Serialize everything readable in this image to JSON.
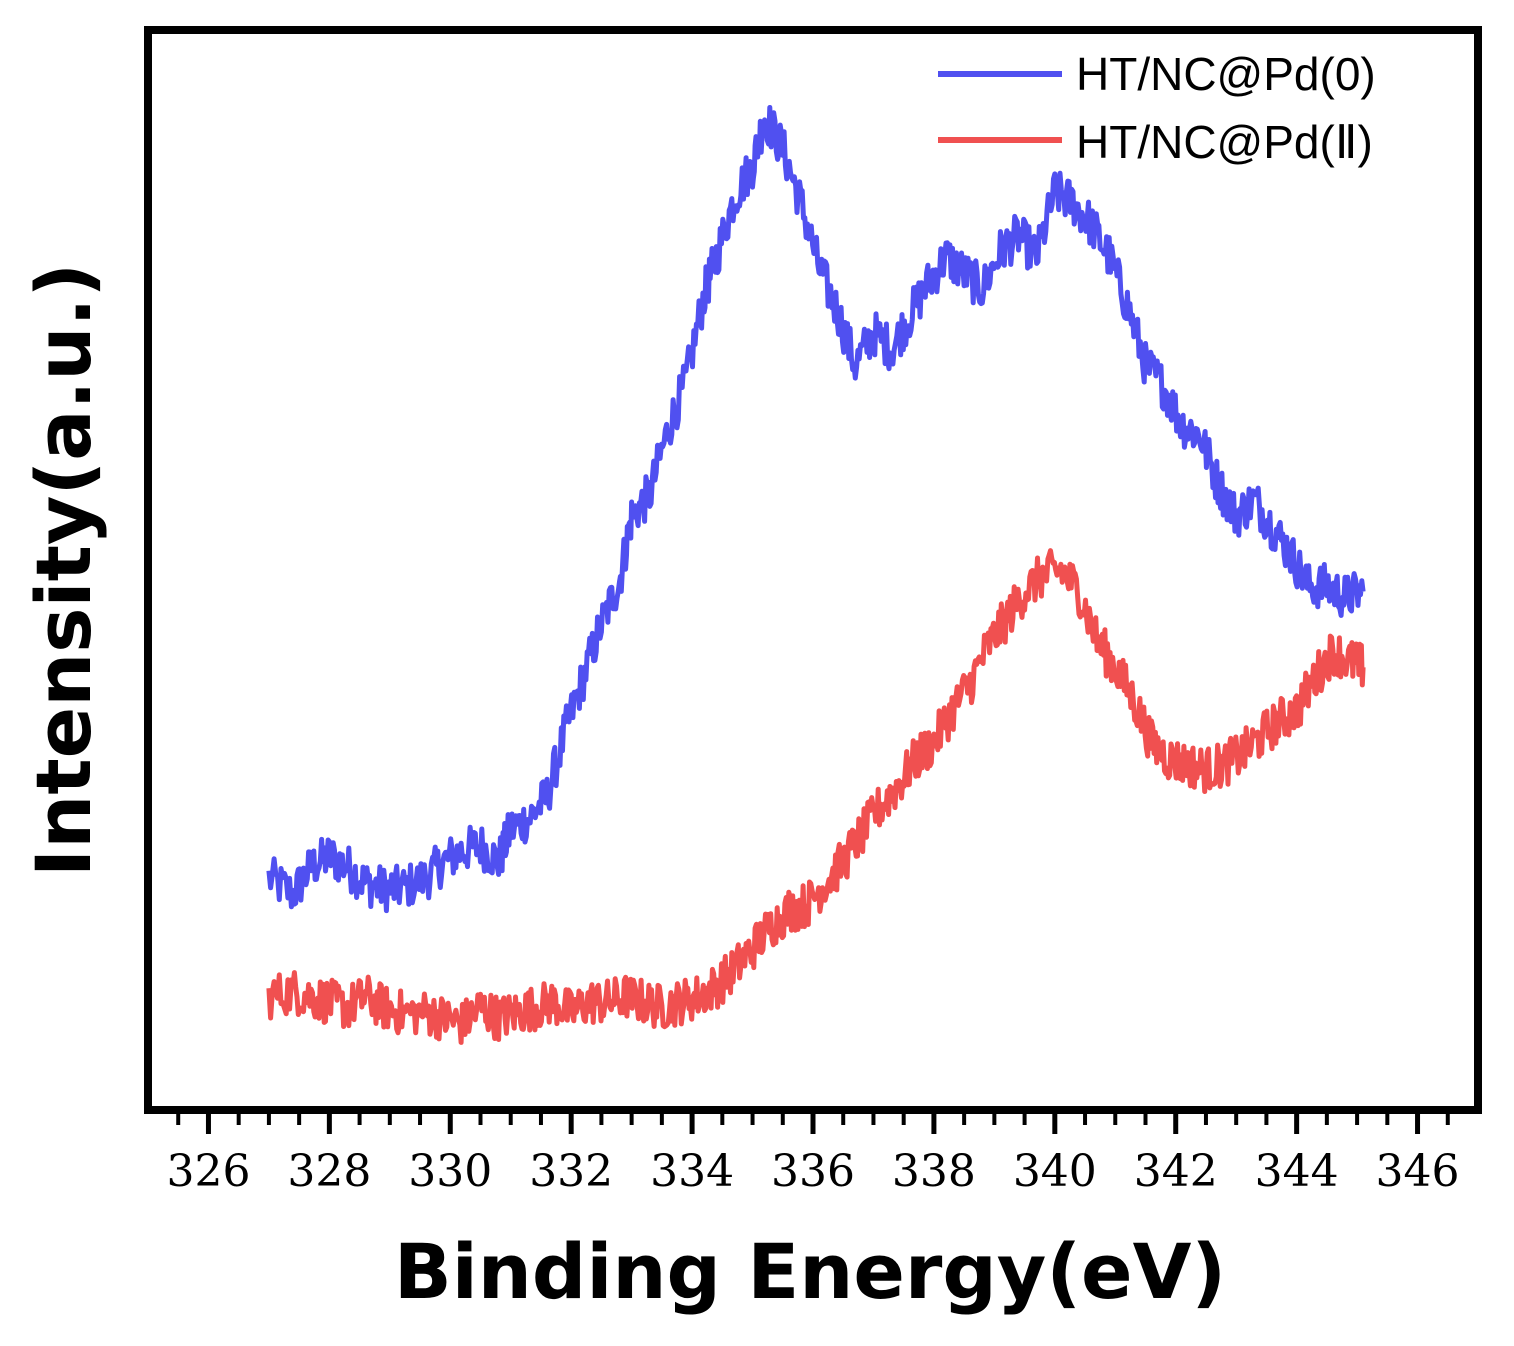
{
  "chart_data": {
    "type": "line",
    "title": "",
    "xlabel": "Binding Energy(eV)",
    "ylabel": "Intensity(a.u.)",
    "xlim": [
      325,
      347
    ],
    "ylim": [
      0,
      100
    ],
    "xticks": [
      326,
      328,
      330,
      332,
      334,
      336,
      338,
      340,
      342,
      344,
      346
    ],
    "x_minor_step": 0.5,
    "yticks_shown": false,
    "grid": false,
    "legend_position": "top-right",
    "series": [
      {
        "name": "HT/NC@Pd(0)",
        "color": "#5050f0",
        "x": [
          327.0,
          327.4,
          327.7,
          328.0,
          328.3,
          328.6,
          328.9,
          329.2,
          329.6,
          329.9,
          330.2,
          330.5,
          330.8,
          331.0,
          331.3,
          331.6,
          331.9,
          332.2,
          332.5,
          332.8,
          333.0,
          333.3,
          333.6,
          333.9,
          334.2,
          334.4,
          334.7,
          335.0,
          335.2,
          335.5,
          335.8,
          336.1,
          336.4,
          336.7,
          337.0,
          337.3,
          337.6,
          337.9,
          338.2,
          338.5,
          338.8,
          339.1,
          339.4,
          339.7,
          340.0,
          340.3,
          340.6,
          340.9,
          341.2,
          341.5,
          341.8,
          342.1,
          342.4,
          342.7,
          343.0,
          343.3,
          343.6,
          343.9,
          344.2,
          344.5,
          344.8,
          345.1
        ],
        "y": [
          21.5,
          20.0,
          22.5,
          23.5,
          22.5,
          21.0,
          20.5,
          20.5,
          21.5,
          23.0,
          24.0,
          24.5,
          23.0,
          26.0,
          27.0,
          29.0,
          35.0,
          40.0,
          45.0,
          49.0,
          55.0,
          57.0,
          63.0,
          67.5,
          75.5,
          79.0,
          84.5,
          87.5,
          92.0,
          89.0,
          84.0,
          78.0,
          74.0,
          69.0,
          72.0,
          70.5,
          73.5,
          76.5,
          79.0,
          77.5,
          76.0,
          79.5,
          81.0,
          79.0,
          85.0,
          84.0,
          82.0,
          79.0,
          74.5,
          69.0,
          67.0,
          63.5,
          62.5,
          58.0,
          55.0,
          56.5,
          54.0,
          51.5,
          48.5,
          48.5,
          47.5,
          48.0
        ]
      },
      {
        "name": "HT/NC@Pd(Ⅱ)",
        "color": "#f05050",
        "x": [
          327.0,
          327.4,
          327.7,
          328.0,
          328.3,
          328.6,
          328.9,
          329.2,
          329.6,
          329.9,
          330.2,
          330.5,
          330.8,
          331.1,
          331.4,
          331.7,
          332.0,
          332.3,
          332.6,
          332.9,
          333.2,
          333.5,
          333.8,
          334.1,
          334.4,
          334.7,
          335.0,
          335.3,
          335.6,
          335.9,
          336.2,
          336.5,
          336.8,
          337.1,
          337.4,
          337.7,
          338.0,
          338.3,
          338.6,
          338.9,
          339.2,
          339.5,
          339.8,
          340.1,
          340.4,
          340.7,
          341.0,
          341.3,
          341.6,
          341.9,
          342.2,
          342.5,
          342.8,
          343.1,
          343.4,
          343.7,
          344.0,
          344.3,
          344.6,
          344.9,
          345.1
        ],
        "y": [
          10.5,
          11.0,
          10.5,
          10.0,
          9.5,
          10.5,
          9.5,
          9.0,
          9.0,
          8.5,
          8.0,
          9.5,
          8.5,
          9.0,
          9.5,
          10.0,
          9.0,
          10.0,
          10.0,
          10.5,
          10.0,
          9.5,
          10.0,
          10.5,
          11.5,
          13.0,
          15.0,
          17.0,
          18.5,
          19.0,
          21.0,
          23.0,
          25.5,
          28.0,
          30.0,
          32.5,
          34.0,
          37.0,
          39.5,
          43.0,
          45.5,
          48.0,
          49.5,
          50.0,
          48.0,
          43.5,
          41.0,
          38.0,
          34.0,
          32.5,
          32.0,
          31.5,
          32.0,
          33.0,
          34.5,
          36.0,
          37.0,
          40.0,
          42.5,
          41.5,
          41.0
        ]
      }
    ]
  }
}
